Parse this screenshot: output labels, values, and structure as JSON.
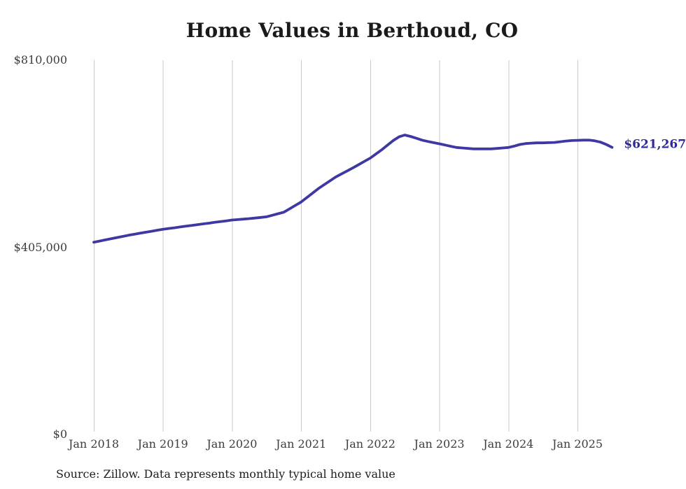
{
  "title": "Home Values in Berthoud, CO",
  "source_note": "Source: Zillow. Data represents monthly typical home value",
  "end_label": "$621,267",
  "colors": {
    "line": "#3e38a5",
    "end_label": "#2e2996",
    "gridline": "#cacaca",
    "axis_text": "#3d3d3d",
    "title_text": "#1a1a1a",
    "source_text": "#1c1c1c",
    "background": "#ffffff"
  },
  "y_axis": {
    "ticks": [
      {
        "label": "$810,000",
        "value": 810000
      },
      {
        "label": "$405,000",
        "value": 405000
      },
      {
        "label": "$0",
        "value": 0
      }
    ]
  },
  "x_axis": {
    "ticks": [
      "Jan 2018",
      "Jan 2019",
      "Jan 2020",
      "Jan 2021",
      "Jan 2022",
      "Jan 2023",
      "Jan 2024",
      "Jan 2025"
    ]
  },
  "chart_data": {
    "type": "line",
    "title": "Home Values in Berthoud, CO",
    "xlabel": "",
    "ylabel": "",
    "ylim": [
      0,
      810000
    ],
    "grid": "vertical-only",
    "legend": "none",
    "last_value_annotation": "$621,267",
    "x": [
      "2018-01",
      "2018-02",
      "2018-03",
      "2018-04",
      "2018-05",
      "2018-06",
      "2018-07",
      "2018-08",
      "2018-09",
      "2018-10",
      "2018-11",
      "2018-12",
      "2019-01",
      "2019-02",
      "2019-03",
      "2019-04",
      "2019-05",
      "2019-06",
      "2019-07",
      "2019-08",
      "2019-09",
      "2019-10",
      "2019-11",
      "2019-12",
      "2020-01",
      "2020-02",
      "2020-03",
      "2020-04",
      "2020-05",
      "2020-06",
      "2020-07",
      "2020-08",
      "2020-09",
      "2020-10",
      "2020-11",
      "2020-12",
      "2021-01",
      "2021-02",
      "2021-03",
      "2021-04",
      "2021-05",
      "2021-06",
      "2021-07",
      "2021-08",
      "2021-09",
      "2021-10",
      "2021-11",
      "2021-12",
      "2022-01",
      "2022-02",
      "2022-03",
      "2022-04",
      "2022-05",
      "2022-06",
      "2022-07",
      "2022-08",
      "2022-09",
      "2022-10",
      "2022-11",
      "2022-12",
      "2023-01",
      "2023-02",
      "2023-03",
      "2023-04",
      "2023-05",
      "2023-06",
      "2023-07",
      "2023-08",
      "2023-09",
      "2023-10",
      "2023-11",
      "2023-12",
      "2024-01",
      "2024-02",
      "2024-03",
      "2024-04",
      "2024-05",
      "2024-06",
      "2024-07",
      "2024-08",
      "2024-09",
      "2024-10",
      "2024-11",
      "2024-12",
      "2025-01",
      "2025-02",
      "2025-03",
      "2025-04",
      "2025-05",
      "2025-06",
      "2025-07"
    ],
    "values": [
      416000,
      418500,
      421000,
      423500,
      426000,
      428500,
      431000,
      433200,
      435400,
      437600,
      439700,
      441900,
      444000,
      445700,
      447300,
      449000,
      450700,
      452300,
      454000,
      455700,
      457300,
      459000,
      460700,
      462300,
      464000,
      465000,
      466000,
      467000,
      468300,
      469700,
      471000,
      474300,
      477700,
      481000,
      488300,
      495700,
      503000,
      512700,
      522300,
      532000,
      540300,
      548700,
      557000,
      563700,
      570300,
      577000,
      584000,
      591000,
      598000,
      607000,
      616000,
      626000,
      636000,
      644000,
      648000,
      645000,
      641000,
      637000,
      634000,
      631500,
      629000,
      626300,
      623700,
      621000,
      620000,
      619000,
      618000,
      618000,
      618000,
      618000,
      619000,
      620000,
      621000,
      624000,
      627500,
      629500,
      630500,
      631000,
      631000,
      631500,
      632000,
      633500,
      635000,
      636000,
      636500,
      637000,
      637000,
      635500,
      632500,
      627500,
      621267
    ]
  }
}
